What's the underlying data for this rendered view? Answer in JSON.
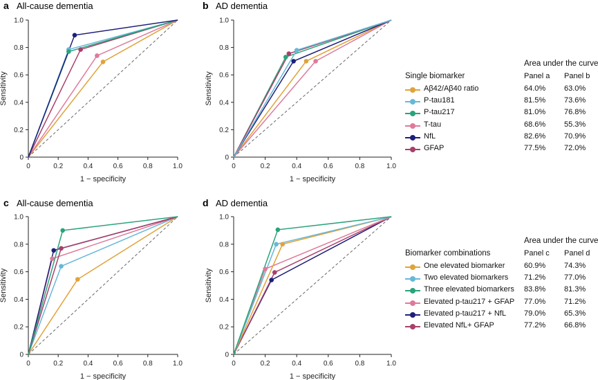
{
  "chart_data": [
    {
      "panel": "a",
      "title": "All-cause dementia",
      "type": "line",
      "xlabel": "1 − specificity",
      "ylabel": "Sensitivity",
      "xlim": [
        0,
        1
      ],
      "ylim": [
        0,
        1
      ],
      "xticks": [
        "0",
        "0.2",
        "0.4",
        "0.6",
        "0.8",
        "1.0"
      ],
      "yticks": [
        "0",
        "0.2",
        "0.4",
        "0.6",
        "0.8",
        "1.0"
      ],
      "series": [
        {
          "name": "Aβ42/Aβ40 ratio",
          "color": "#e0a33a",
          "point": [
            0.5,
            0.695
          ]
        },
        {
          "name": "T-tau",
          "color": "#de7a9a",
          "point": [
            0.46,
            0.74
          ]
        },
        {
          "name": "GFAP",
          "color": "#a8406a",
          "point": [
            0.35,
            0.785
          ]
        },
        {
          "name": "P-tau181",
          "color": "#66b8d8",
          "point": [
            0.27,
            0.785
          ]
        },
        {
          "name": "P-tau217",
          "color": "#2aa37b",
          "point": [
            0.27,
            0.77
          ]
        },
        {
          "name": "NfL",
          "color": "#1f1f7a",
          "point": [
            0.31,
            0.89
          ]
        }
      ]
    },
    {
      "panel": "b",
      "title": "AD dementia",
      "type": "line",
      "xlabel": "1 − specificity",
      "ylabel": "Sensitivity",
      "xlim": [
        0,
        1
      ],
      "ylim": [
        0,
        1
      ],
      "xticks": [
        "0",
        "0.2",
        "0.4",
        "0.6",
        "0.8",
        "1.0"
      ],
      "yticks": [
        "0",
        "0.2",
        "0.4",
        "0.6",
        "0.8",
        "1.0"
      ],
      "series": [
        {
          "name": "Aβ42/Aβ40 ratio",
          "color": "#e0a33a",
          "point": [
            0.46,
            0.7
          ]
        },
        {
          "name": "T-tau",
          "color": "#de7a9a",
          "point": [
            0.52,
            0.7
          ]
        },
        {
          "name": "NfL",
          "color": "#1f1f7a",
          "point": [
            0.38,
            0.7
          ]
        },
        {
          "name": "P-tau217",
          "color": "#2aa37b",
          "point": [
            0.33,
            0.73
          ]
        },
        {
          "name": "GFAP",
          "color": "#a8406a",
          "point": [
            0.35,
            0.755
          ]
        },
        {
          "name": "P-tau181",
          "color": "#66b8d8",
          "point": [
            0.4,
            0.78
          ]
        }
      ]
    },
    {
      "panel": "c",
      "title": "All-cause dementia",
      "type": "line",
      "xlabel": "1 − specificity",
      "ylabel": "Sensitivity",
      "xlim": [
        0,
        1
      ],
      "ylim": [
        0,
        1
      ],
      "xticks": [
        "0",
        "0.2",
        "0.4",
        "0.6",
        "0.8",
        "1.0"
      ],
      "yticks": [
        "0",
        "0.2",
        "0.4",
        "0.6",
        "0.8",
        "1.0"
      ],
      "series": [
        {
          "name": "One elevated biomarker",
          "color": "#e0a33a",
          "point": [
            0.33,
            0.545
          ]
        },
        {
          "name": "Two elevated biomarkers",
          "color": "#66b8d8",
          "point": [
            0.22,
            0.64
          ]
        },
        {
          "name": "Elevated p-tau217 + GFAP",
          "color": "#de7a9a",
          "point": [
            0.16,
            0.695
          ]
        },
        {
          "name": "Elevated p-tau217 + NfL",
          "color": "#1f1f7a",
          "point": [
            0.17,
            0.755
          ]
        },
        {
          "name": "Elevated NfL+ GFAP",
          "color": "#a8406a",
          "point": [
            0.22,
            0.77
          ]
        },
        {
          "name": "Three elevated biomarkers",
          "color": "#2aa37b",
          "point": [
            0.23,
            0.9
          ]
        }
      ]
    },
    {
      "panel": "d",
      "title": "AD dementia",
      "type": "line",
      "xlabel": "1 − specificity",
      "ylabel": "Sensitivity",
      "xlim": [
        0,
        1
      ],
      "ylim": [
        0,
        1
      ],
      "xticks": [
        "0",
        "0.2",
        "0.4",
        "0.6",
        "0.8",
        "1.0"
      ],
      "yticks": [
        "0",
        "0.2",
        "0.4",
        "0.6",
        "0.8",
        "1.0"
      ],
      "series": [
        {
          "name": "Elevated p-tau217 + NfL",
          "color": "#1f1f7a",
          "point": [
            0.24,
            0.54
          ]
        },
        {
          "name": "Elevated NfL+ GFAP",
          "color": "#a8406a",
          "point": [
            0.26,
            0.595
          ]
        },
        {
          "name": "Elevated p-tau217 + GFAP",
          "color": "#de7a9a",
          "point": [
            0.2,
            0.62
          ]
        },
        {
          "name": "One elevated biomarker",
          "color": "#e0a33a",
          "point": [
            0.31,
            0.8
          ]
        },
        {
          "name": "Two elevated biomarkers",
          "color": "#66b8d8",
          "point": [
            0.27,
            0.8
          ]
        },
        {
          "name": "Three elevated biomarkers",
          "color": "#2aa37b",
          "point": [
            0.28,
            0.905
          ]
        }
      ]
    }
  ],
  "legend_top": {
    "header": "Area under the curve",
    "group_label": "Single biomarker",
    "col1": "Panel a",
    "col2": "Panel b",
    "rows": [
      {
        "name": "Aβ42/Aβ40 ratio",
        "color": "#e0a33a",
        "v1": "64.0%",
        "v2": "63.0%"
      },
      {
        "name": "P-tau181",
        "color": "#66b8d8",
        "v1": "81.5%",
        "v2": "73.6%"
      },
      {
        "name": "P-tau217",
        "color": "#2aa37b",
        "v1": "81.0%",
        "v2": "76.8%"
      },
      {
        "name": "T-tau",
        "color": "#de7a9a",
        "v1": "68.6%",
        "v2": "55.3%"
      },
      {
        "name": "NfL",
        "color": "#1f1f7a",
        "v1": "82.6%",
        "v2": "70.9%"
      },
      {
        "name": "GFAP",
        "color": "#a8406a",
        "v1": "77.5%",
        "v2": "72.0%"
      }
    ]
  },
  "legend_bottom": {
    "header": "Area under the curve",
    "group_label": "Biomarker combinations",
    "col1": "Panel c",
    "col2": "Panel d",
    "rows": [
      {
        "name": "One elevated biomarker",
        "color": "#e0a33a",
        "v1": "60.9%",
        "v2": "74.3%"
      },
      {
        "name": "Two elevated biomarkers",
        "color": "#66b8d8",
        "v1": "71.2%",
        "v2": "77.0%"
      },
      {
        "name": "Three elevated biomarkers",
        "color": "#2aa37b",
        "v1": "83.8%",
        "v2": "81.3%"
      },
      {
        "name": "Elevated p-tau217 + GFAP",
        "color": "#de7a9a",
        "v1": "77.0%",
        "v2": "71.2%"
      },
      {
        "name": "Elevated p-tau217 + NfL",
        "color": "#1f1f7a",
        "v1": "79.0%",
        "v2": "65.3%"
      },
      {
        "name": "Elevated NfL+ GFAP",
        "color": "#a8406a",
        "v1": "77.2%",
        "v2": "66.8%"
      }
    ]
  }
}
